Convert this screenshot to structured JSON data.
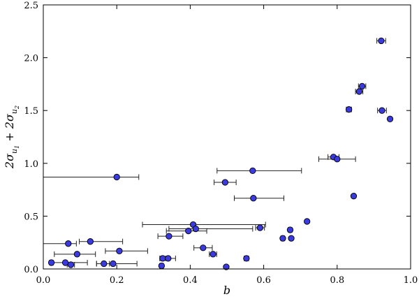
{
  "chart_data": {
    "type": "scatter",
    "xlabel": "b",
    "ylabel": "2σu1 + 2σu2",
    "xlim": [
      0.0,
      1.0
    ],
    "ylim": [
      0.0,
      2.5
    ],
    "xticks": [
      "0.0",
      "0.2",
      "0.4",
      "0.6",
      "0.8",
      "1.0"
    ],
    "yticks": [
      "0.0",
      "0.5",
      "1.0",
      "1.5",
      "2.0",
      "2.5"
    ],
    "grid": false,
    "marker_color": "#3a3adf",
    "points": [
      {
        "x": 0.92,
        "y": 2.16,
        "xerr": 0.012
      },
      {
        "x": 0.868,
        "y": 1.73,
        "xerr": 0.01
      },
      {
        "x": 0.86,
        "y": 1.68,
        "xerr": 0.01
      },
      {
        "x": 0.832,
        "y": 1.51,
        "xerr": 0.007
      },
      {
        "x": 0.922,
        "y": 1.5,
        "xerr": 0.012
      },
      {
        "x": 0.944,
        "y": 1.42,
        "xerr": 0.0
      },
      {
        "x": 0.79,
        "y": 1.06,
        "xerr": 0.015
      },
      {
        "x": 0.8,
        "y": 1.04,
        "xerr": 0.05
      },
      {
        "x": 0.845,
        "y": 0.69,
        "xerr": 0.0
      },
      {
        "x": 0.718,
        "y": 0.45,
        "xerr": 0.0
      },
      {
        "x": 0.672,
        "y": 0.37,
        "xerr": 0.005
      },
      {
        "x": 0.652,
        "y": 0.29,
        "xerr": 0.005
      },
      {
        "x": 0.675,
        "y": 0.29,
        "xerr": 0.0
      },
      {
        "x": 0.57,
        "y": 0.93,
        "xerr": 0.097,
        "xerr_hi": 0.133
      },
      {
        "x": 0.495,
        "y": 0.82,
        "xerr": 0.03
      },
      {
        "x": 0.572,
        "y": 0.67,
        "xerr": 0.052,
        "xerr_hi": 0.083
      },
      {
        "x": 0.59,
        "y": 0.39,
        "xerr": 0.012
      },
      {
        "x": 0.553,
        "y": 0.1,
        "xerr": 0.006
      },
      {
        "x": 0.498,
        "y": 0.02,
        "xerr": 0.0
      },
      {
        "x": 0.2,
        "y": 0.87,
        "xerr": 0.2,
        "xerr_hi": 0.06
      },
      {
        "x": 0.408,
        "y": 0.42,
        "xerr": 0.138,
        "xerr_hi": 0.197
      },
      {
        "x": 0.415,
        "y": 0.38,
        "xerr": 0.073,
        "xerr_hi": 0.155
      },
      {
        "x": 0.395,
        "y": 0.36,
        "xerr": 0.06,
        "xerr_hi": 0.05
      },
      {
        "x": 0.342,
        "y": 0.31,
        "xerr": 0.03,
        "xerr_hi": 0.038
      },
      {
        "x": 0.435,
        "y": 0.2,
        "xerr": 0.025
      },
      {
        "x": 0.462,
        "y": 0.14,
        "xerr": 0.01
      },
      {
        "x": 0.325,
        "y": 0.1,
        "xerr": 0.008
      },
      {
        "x": 0.34,
        "y": 0.1,
        "xerr": 0.02
      },
      {
        "x": 0.322,
        "y": 0.03,
        "xerr": 0.005
      },
      {
        "x": 0.068,
        "y": 0.24,
        "xerr": 0.068,
        "xerr_hi": 0.022
      },
      {
        "x": 0.128,
        "y": 0.26,
        "xerr": 0.03,
        "xerr_hi": 0.088
      },
      {
        "x": 0.207,
        "y": 0.17,
        "xerr": 0.038,
        "xerr_hi": 0.077
      },
      {
        "x": 0.092,
        "y": 0.14,
        "xerr": 0.062,
        "xerr_hi": 0.05
      },
      {
        "x": 0.022,
        "y": 0.06,
        "xerr": 0.005
      },
      {
        "x": 0.06,
        "y": 0.06,
        "xerr": 0.04,
        "xerr_hi": 0.06
      },
      {
        "x": 0.075,
        "y": 0.04,
        "xerr": 0.01
      },
      {
        "x": 0.165,
        "y": 0.05,
        "xerr": 0.02,
        "xerr_hi": 0.015
      },
      {
        "x": 0.19,
        "y": 0.05,
        "xerr": 0.045,
        "xerr_hi": 0.065
      }
    ]
  }
}
